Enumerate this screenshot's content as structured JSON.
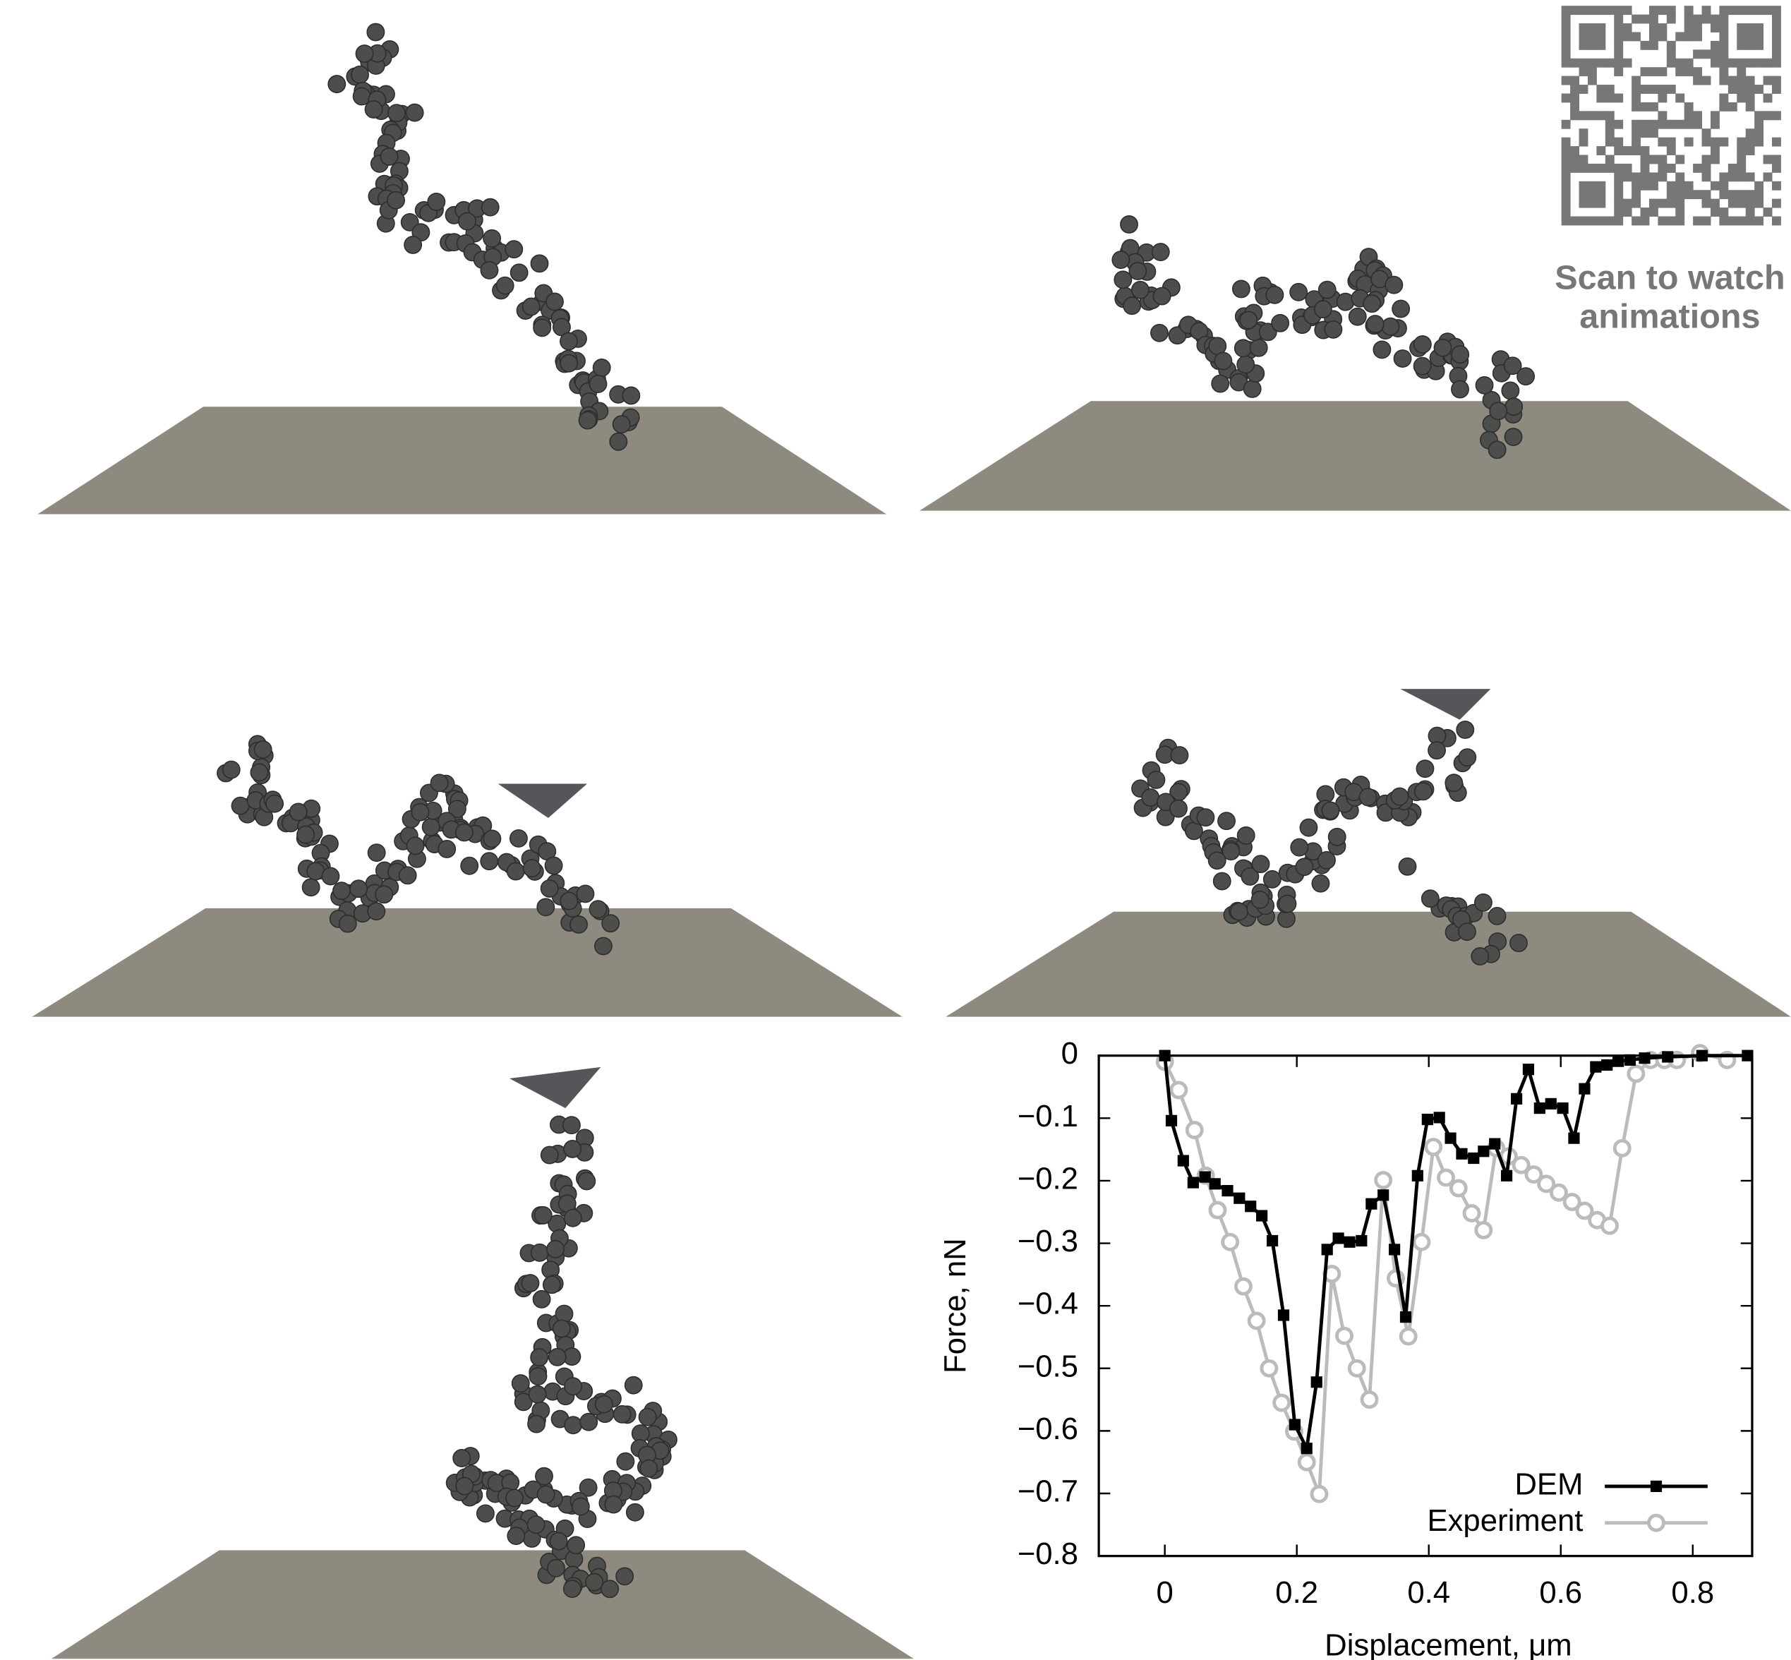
{
  "qr_caption": "Scan to watch animations",
  "chart_data": {
    "type": "line",
    "xlabel": "Displacement, μm",
    "ylabel": "Force, nN",
    "xlim": [
      -0.1,
      0.89
    ],
    "ylim": [
      -0.8,
      0
    ],
    "xticks": [
      0,
      0.2,
      0.4,
      0.6,
      0.8
    ],
    "yticks": [
      0,
      {
        "value": -0.1,
        "label": "−0.1"
      },
      {
        "value": -0.2,
        "label": "−0.2"
      },
      {
        "value": -0.3,
        "label": "−0.3"
      },
      {
        "value": -0.4,
        "label": "−0.4"
      },
      {
        "value": -0.5,
        "label": "−0.5"
      },
      {
        "value": -0.6,
        "label": "−0.6"
      },
      {
        "value": -0.7,
        "label": "−0.7"
      },
      {
        "value": -0.8,
        "label": "−0.8"
      }
    ],
    "legend": "lower right",
    "series": [
      {
        "name": "DEM",
        "color": "#000000",
        "marker": "square",
        "x": [
          0,
          0.01,
          0.028,
          0.043,
          0.061,
          0.076,
          0.095,
          0.113,
          0.13,
          0.147,
          0.163,
          0.18,
          0.197,
          0.215,
          0.23,
          0.246,
          0.263,
          0.28,
          0.298,
          0.313,
          0.331,
          0.348,
          0.365,
          0.383,
          0.398,
          0.416,
          0.433,
          0.45,
          0.468,
          0.483,
          0.5,
          0.518,
          0.533,
          0.551,
          0.568,
          0.585,
          0.603,
          0.62,
          0.636,
          0.653,
          0.67,
          0.687,
          0.705,
          0.727,
          0.762,
          0.814,
          0.883
        ],
        "values": [
          0,
          -0.104,
          -0.168,
          -0.203,
          -0.194,
          -0.205,
          -0.216,
          -0.228,
          -0.241,
          -0.256,
          -0.296,
          -0.415,
          -0.59,
          -0.628,
          -0.522,
          -0.31,
          -0.292,
          -0.298,
          -0.296,
          -0.237,
          -0.223,
          -0.31,
          -0.418,
          -0.192,
          -0.102,
          -0.099,
          -0.132,
          -0.157,
          -0.164,
          -0.153,
          -0.141,
          -0.192,
          -0.069,
          -0.022,
          -0.084,
          -0.077,
          -0.084,
          -0.132,
          -0.053,
          -0.018,
          -0.015,
          -0.009,
          -0.007,
          -0.004,
          -0.002,
          0,
          0
        ]
      },
      {
        "name": "Experiment",
        "color": "#bbbbbb",
        "marker": "circle",
        "x": [
          0,
          0.021,
          0.045,
          0.062,
          0.08,
          0.099,
          0.119,
          0.139,
          0.158,
          0.177,
          0.196,
          0.215,
          0.234,
          0.253,
          0.272,
          0.291,
          0.31,
          0.331,
          0.35,
          0.369,
          0.389,
          0.407,
          0.426,
          0.445,
          0.465,
          0.483,
          0.502,
          0.521,
          0.54,
          0.559,
          0.578,
          0.597,
          0.617,
          0.636,
          0.655,
          0.674,
          0.693,
          0.714,
          0.736,
          0.757,
          0.776,
          0.811,
          0.852
        ],
        "values": [
          -0.01,
          -0.055,
          -0.119,
          -0.192,
          -0.247,
          -0.298,
          -0.369,
          -0.424,
          -0.5,
          -0.555,
          -0.601,
          -0.65,
          -0.701,
          -0.349,
          -0.448,
          -0.5,
          -0.55,
          -0.199,
          -0.356,
          -0.449,
          -0.298,
          -0.146,
          -0.195,
          -0.212,
          -0.252,
          -0.279,
          -0.148,
          -0.161,
          -0.175,
          -0.19,
          -0.205,
          -0.219,
          -0.234,
          -0.248,
          -0.263,
          -0.272,
          -0.148,
          -0.029,
          -0.007,
          -0.007,
          -0.007,
          0.004,
          -0.007
        ]
      }
    ]
  }
}
